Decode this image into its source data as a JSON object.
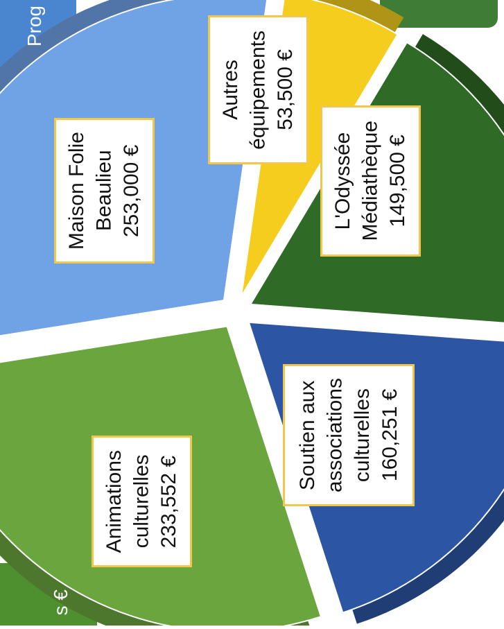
{
  "chart_data": {
    "type": "pie",
    "title": "",
    "slices": [
      {
        "label_lines": [
          "Maison Folie",
          "Beaulieu"
        ],
        "value": 253000,
        "value_label": "253,000 €",
        "color": "#6fa3e6"
      },
      {
        "label_lines": [
          "Autres",
          "équipements"
        ],
        "value": 53500,
        "value_label": "53,500 €",
        "color": "#f5cd1e"
      },
      {
        "label_lines": [
          "L'Odyssée",
          "Médiathèque"
        ],
        "value": 149500,
        "value_label": "149,500 €",
        "color": "#2f6b26"
      },
      {
        "label_lines": [
          "Soutien aux",
          "associations",
          "culturelles"
        ],
        "value": 160251,
        "value_label": "160,251 €",
        "color": "#2c56a3"
      },
      {
        "label_lines": [
          "Animations",
          "culturelles"
        ],
        "value": 233552,
        "value_label": "233,552 €",
        "color": "#6aa53e"
      }
    ]
  },
  "partial_labels": {
    "top_left": "Prog",
    "bottom_left": "s €"
  }
}
